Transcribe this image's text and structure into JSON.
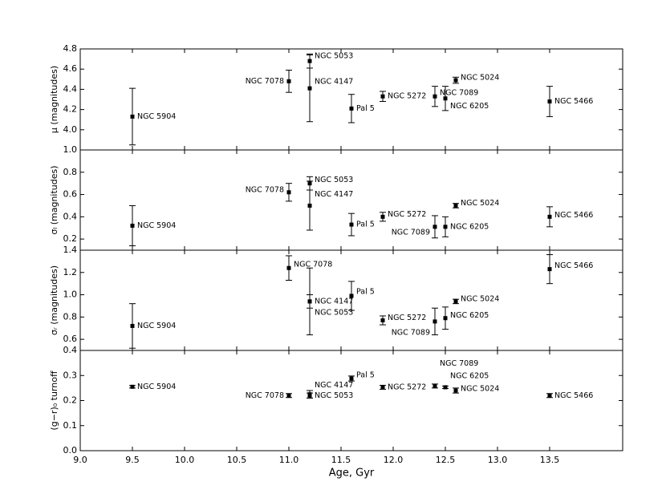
{
  "chart_data": [
    {
      "type": "scatter",
      "ylabel": "μ (magnitudes)",
      "color": "#000000",
      "x": [
        9.5,
        11.0,
        11.2,
        11.2,
        11.6,
        11.9,
        12.4,
        12.5,
        12.6,
        13.5
      ],
      "labels": [
        "NGC 5904",
        "NGC 7078",
        "NGC 5053",
        "NGC 4147",
        "Pal 5",
        "NGC 5272",
        "NGC 7089",
        "NGC 6205",
        "NGC 5024",
        "NGC 5466"
      ],
      "values": [
        4.13,
        4.48,
        4.68,
        4.41,
        4.21,
        4.33,
        4.33,
        4.31,
        4.49,
        4.28
      ],
      "errors": [
        0.28,
        0.11,
        0.07,
        0.33,
        0.14,
        0.05,
        0.1,
        0.12,
        0.03,
        0.15
      ],
      "xlim": [
        9,
        14.2
      ],
      "ylim": [
        3.8,
        4.8
      ],
      "yticks": [
        {
          "value": 4,
          "label": "4.0"
        },
        4.2,
        4.4,
        4.6,
        4.8
      ]
    },
    {
      "type": "scatter",
      "ylabel": "σₗ (magnitudes)",
      "color": "#000000",
      "x": [
        9.5,
        11.0,
        11.2,
        11.2,
        11.6,
        11.9,
        12.4,
        12.5,
        12.6,
        13.5
      ],
      "labels": [
        "NGC 5904",
        "NGC 7078",
        "NGC 5053",
        "NGC 4147",
        "Pal 5",
        "NGC 5272",
        "NGC 7089",
        "NGC 6205",
        "NGC 5024",
        "NGC 5466"
      ],
      "values": [
        0.32,
        0.62,
        0.7,
        0.5,
        0.33,
        0.4,
        0.31,
        0.31,
        0.5,
        0.4
      ],
      "errors": [
        0.18,
        0.08,
        0.06,
        0.22,
        0.1,
        0.04,
        0.1,
        0.09,
        0.02,
        0.09
      ],
      "xlim": [
        9,
        14.2
      ],
      "ylim": [
        0.1,
        1.0
      ],
      "yticks": [
        0.2,
        0.4,
        0.6,
        0.8,
        {
          "value": 1,
          "label": "1.0"
        }
      ]
    },
    {
      "type": "scatter",
      "ylabel": "σᵣ (magnitudes)",
      "color": "#000000",
      "x": [
        9.5,
        11.0,
        11.2,
        11.2,
        11.6,
        11.9,
        12.4,
        12.5,
        12.6,
        13.5
      ],
      "labels": [
        "NGC 5904",
        "NGC 7078",
        "NGC 5053",
        "NGC 4147",
        "Pal 5",
        "NGC 5272",
        "NGC 7089",
        "NGC 6205",
        "NGC 5024",
        "NGC 5466"
      ],
      "values": [
        0.72,
        1.24,
        0.94,
        0.94,
        0.99,
        0.77,
        0.76,
        0.79,
        0.94,
        1.23
      ],
      "errors": [
        0.2,
        0.11,
        0.3,
        0.06,
        0.13,
        0.04,
        0.12,
        0.1,
        0.02,
        0.13
      ],
      "xlim": [
        9,
        14.2
      ],
      "ylim": [
        0.5,
        1.4
      ],
      "yticks": [
        0.6,
        0.8,
        {
          "value": 1,
          "label": "1.0"
        },
        1.2,
        1.4
      ]
    },
    {
      "type": "scatter",
      "ylabel": "(g−r)₀ turnoff",
      "xlabel": "Age, Gyr",
      "color": "#000000",
      "x": [
        9.5,
        11.0,
        11.2,
        11.2,
        11.6,
        11.9,
        12.4,
        12.5,
        12.6,
        13.5
      ],
      "labels": [
        "NGC 5904",
        "NGC 7078",
        "NGC 5053",
        "NGC 4147",
        "Pal 5",
        "NGC 5272",
        "NGC 7089",
        "NGC 6205",
        "NGC 5024",
        "NGC 5466"
      ],
      "values": [
        0.255,
        0.22,
        0.22,
        0.225,
        0.288,
        0.253,
        0.258,
        0.253,
        0.24,
        0.22
      ],
      "errors": [
        0.005,
        0.008,
        0.01,
        0.015,
        0.01,
        0.008,
        0.008,
        0.005,
        0.01,
        0.008
      ],
      "xlim": [
        9,
        14.2
      ],
      "ylim": [
        0,
        0.4
      ],
      "yticks": [
        {
          "value": 0,
          "label": "0.0"
        },
        0.1,
        0.2,
        0.3,
        0.4
      ],
      "xticks": [
        {
          "value": 9,
          "label": "9.0"
        },
        9.5,
        {
          "value": 10,
          "label": "10.0"
        },
        10.5,
        {
          "value": 11,
          "label": "11.0"
        },
        11.5,
        {
          "value": 12,
          "label": "12.0"
        },
        12.5,
        {
          "value": 13,
          "label": "13.0"
        },
        13.5
      ]
    }
  ]
}
